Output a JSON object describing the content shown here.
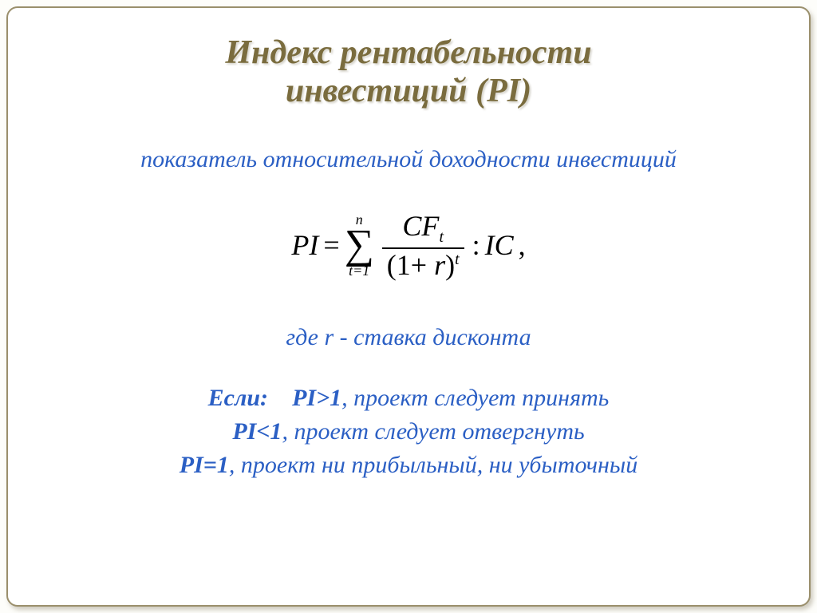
{
  "colors": {
    "background": "#ffffff",
    "frame_border": "#9a8f6c",
    "title_color": "#7a6c3e",
    "body_color": "#2b5fc4",
    "formula_color": "#000000"
  },
  "typography": {
    "title_fontsize_pt": 32,
    "body_fontsize_pt": 22,
    "formula_fontsize_pt": 27,
    "font_family": "serif-italic"
  },
  "title": {
    "line1": "Индекс рентабельности",
    "line2": "инвестиций (PI)"
  },
  "subtitle": "показатель относительной доходности инвестиций",
  "formula": {
    "lhs": "PI",
    "eq": "=",
    "sum_upper": "n",
    "sum_lower": "t=1",
    "numerator_base": "CF",
    "numerator_sub": "t",
    "denominator_open": "(1",
    "denominator_plus": "+",
    "denominator_var": "r",
    "denominator_close": ")",
    "denominator_exp": "t",
    "divide": ":",
    "rhs": "IC",
    "tail": ","
  },
  "where": "где r - ставка дисконта",
  "rules": {
    "intro": "Если:",
    "r1_cond": "PI>1",
    "r1_text": ", проект следует принять",
    "r2_cond": "PI<1",
    "r2_text": ", проект следует отвергнуть",
    "r3_cond": "PI=1",
    "r3_text": ", проект ни прибыльный, ни убыточный"
  }
}
